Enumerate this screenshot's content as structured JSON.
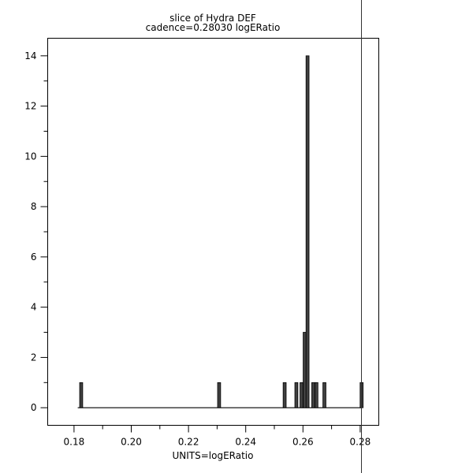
{
  "chart_data": {
    "type": "bar",
    "title": "slice of Hydra DEF",
    "subtitle": "cadence=0.28030 logERatio",
    "xlabel": "UNITS=logERatio",
    "ylabel": "",
    "xlim": [
      0.1708,
      0.2865
    ],
    "ylim": [
      -0.7,
      14.7
    ],
    "x_ticks": [
      "0.18",
      "0.20",
      "0.22",
      "0.24",
      "0.26",
      "0.28"
    ],
    "y_ticks": [
      "0",
      "2",
      "4",
      "6",
      "8",
      "10",
      "12",
      "14"
    ],
    "bin_width": 0.00106,
    "bins": [
      {
        "x": 0.1825,
        "count": 1
      },
      {
        "x": 0.2307,
        "count": 1
      },
      {
        "x": 0.2536,
        "count": 1
      },
      {
        "x": 0.2577,
        "count": 1
      },
      {
        "x": 0.2595,
        "count": 1
      },
      {
        "x": 0.2606,
        "count": 3
      },
      {
        "x": 0.2616,
        "count": 14
      },
      {
        "x": 0.2636,
        "count": 1
      },
      {
        "x": 0.2647,
        "count": 1
      },
      {
        "x": 0.2675,
        "count": 1
      },
      {
        "x": 0.2805,
        "count": 1
      }
    ],
    "baseline_range": [
      0.1813,
      0.2803
    ],
    "cursor_x": 0.2803,
    "grid": false,
    "legend": "none",
    "colors": {
      "bar_fill": "#404040",
      "bar_edge": "#000000",
      "axis": "#000000"
    }
  }
}
